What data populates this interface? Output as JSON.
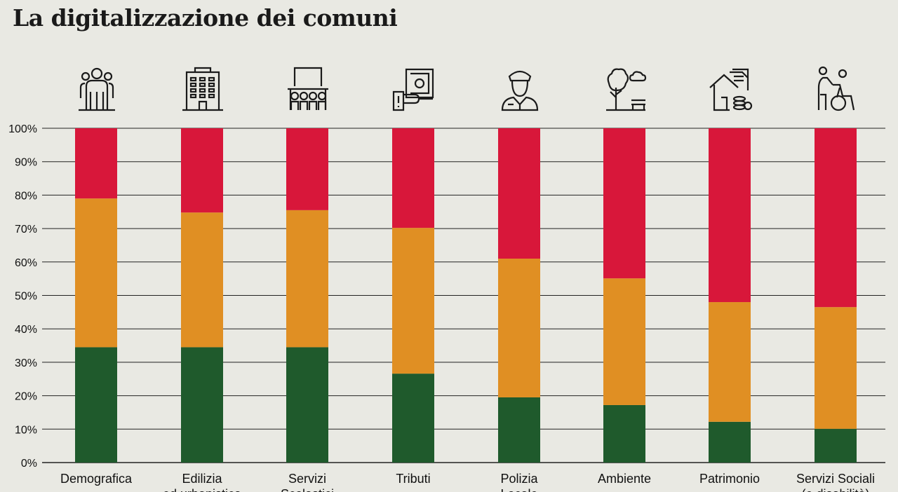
{
  "title": "La digitalizzazione dei comuni",
  "chart_data": {
    "type": "bar",
    "stacked": true,
    "title": "La digitalizzazione dei comuni",
    "categories": [
      "Demografica",
      "Edilizia ed urbanistica",
      "Servizi Scolastici",
      "Tributi",
      "Polizia Locale",
      "Ambiente",
      "Patrimonio",
      "Servizi Sociali (e disabilità)"
    ],
    "category_lines": [
      [
        "Demografica"
      ],
      [
        "Edilizia",
        "ed urbanistica"
      ],
      [
        "Servizi",
        "Scolastici"
      ],
      [
        "Tributi"
      ],
      [
        "Polizia",
        "Locale"
      ],
      [
        "Ambiente"
      ],
      [
        "Patrimonio"
      ],
      [
        "Servizi Sociali",
        "(e disabilità)"
      ]
    ],
    "icons": [
      "people-group-icon",
      "building-icon",
      "classroom-icon",
      "money-hand-icon",
      "police-officer-icon",
      "park-tree-bench-icon",
      "house-coins-icon",
      "wheelchair-assist-icon"
    ],
    "series": [
      {
        "color": "#1f5a2c",
        "values": [
          34.5,
          34.5,
          34.5,
          26.6,
          19.5,
          17.2,
          12.2,
          10.1
        ]
      },
      {
        "color": "#e08f23",
        "values": [
          44.5,
          40.3,
          41.0,
          43.6,
          41.5,
          37.9,
          35.8,
          36.4
        ]
      },
      {
        "color": "#d8173a",
        "values": [
          21.0,
          25.2,
          24.5,
          29.8,
          39.0,
          44.9,
          52.0,
          53.5
        ]
      }
    ],
    "ylim": [
      0,
      100
    ],
    "yticks": [
      "0%",
      "10%",
      "20%",
      "30%",
      "40%",
      "50%",
      "60%",
      "70%",
      "80%",
      "90%",
      "100%"
    ],
    "grid": true,
    "xlabel": "",
    "ylabel": ""
  }
}
